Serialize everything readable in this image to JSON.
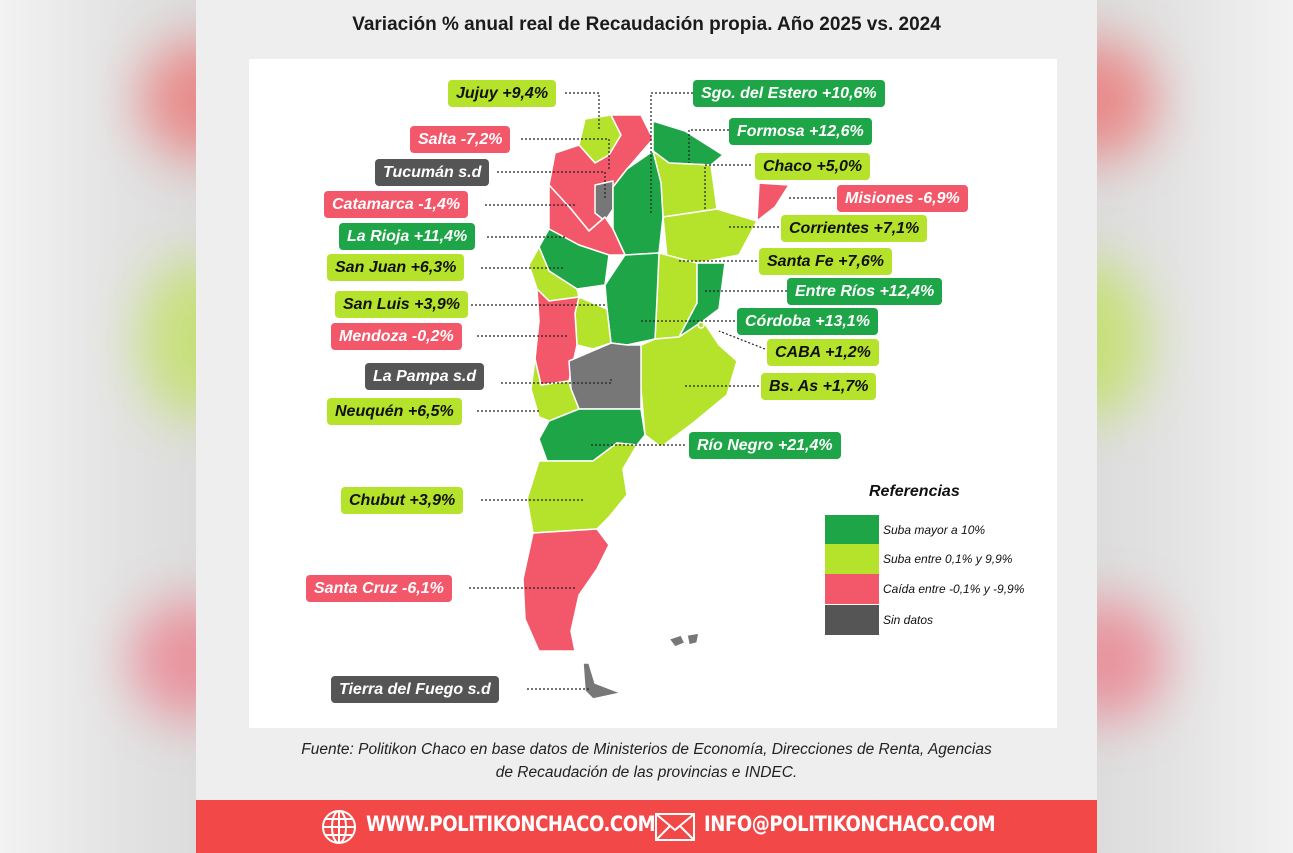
{
  "title": "Variación % anual real de Recaudación propia. Año 2025 vs. 2024",
  "colors": {
    "suba_mayor": "#1ea548",
    "suba_entre": "#b5e22b",
    "caida": "#f2576a",
    "sin_datos": "#555555",
    "footer": "#f24848"
  },
  "labels": {
    "jujuy": "Jujuy +9,4%",
    "salta": "Salta -7,2%",
    "tucuman": "Tucumán s.d",
    "catamarca": "Catamarca -1,4%",
    "la_rioja": "La Rioja +11,4%",
    "san_juan": "San Juan +6,3%",
    "san_luis": "San Luis +3,9%",
    "mendoza": "Mendoza -0,2%",
    "la_pampa": "La Pampa s.d",
    "neuquen": "Neuquén +6,5%",
    "chubut": "Chubut +3,9%",
    "santa_cruz": "Santa Cruz -6,1%",
    "tierra_del_fuego": "Tierra del Fuego s.d",
    "sgo_estero": "Sgo. del Estero +10,6%",
    "formosa": "Formosa +12,6%",
    "chaco": "Chaco +5,0%",
    "misiones": "Misiones -6,9%",
    "corrientes": "Corrientes +7,1%",
    "santa_fe": "Santa Fe +7,6%",
    "entre_rios": "Entre Ríos +12,4%",
    "cordoba": "Córdoba +13,1%",
    "caba": "CABA +1,2%",
    "bs_as": "Bs. As +1,7%",
    "rio_negro": "Río Negro +21,4%"
  },
  "legend": {
    "title": "Referencias",
    "items": [
      "Suba mayor a 10%",
      "Suba entre 0,1% y 9,9%",
      "Caída entre -0,1% y -9,9%",
      "Sin datos"
    ]
  },
  "source": {
    "line1": "Fuente: Politikon Chaco en base datos de Ministerios de Economía, Direcciones de Renta, Agencias",
    "line2": "de Recaudación de las provincias e INDEC."
  },
  "footer": {
    "website": "WWW.POLITIKONCHACO.COM",
    "email": "INFO@POLITIKONCHACO.COM"
  },
  "icons": [
    "globe-icon",
    "mail-icon"
  ]
}
